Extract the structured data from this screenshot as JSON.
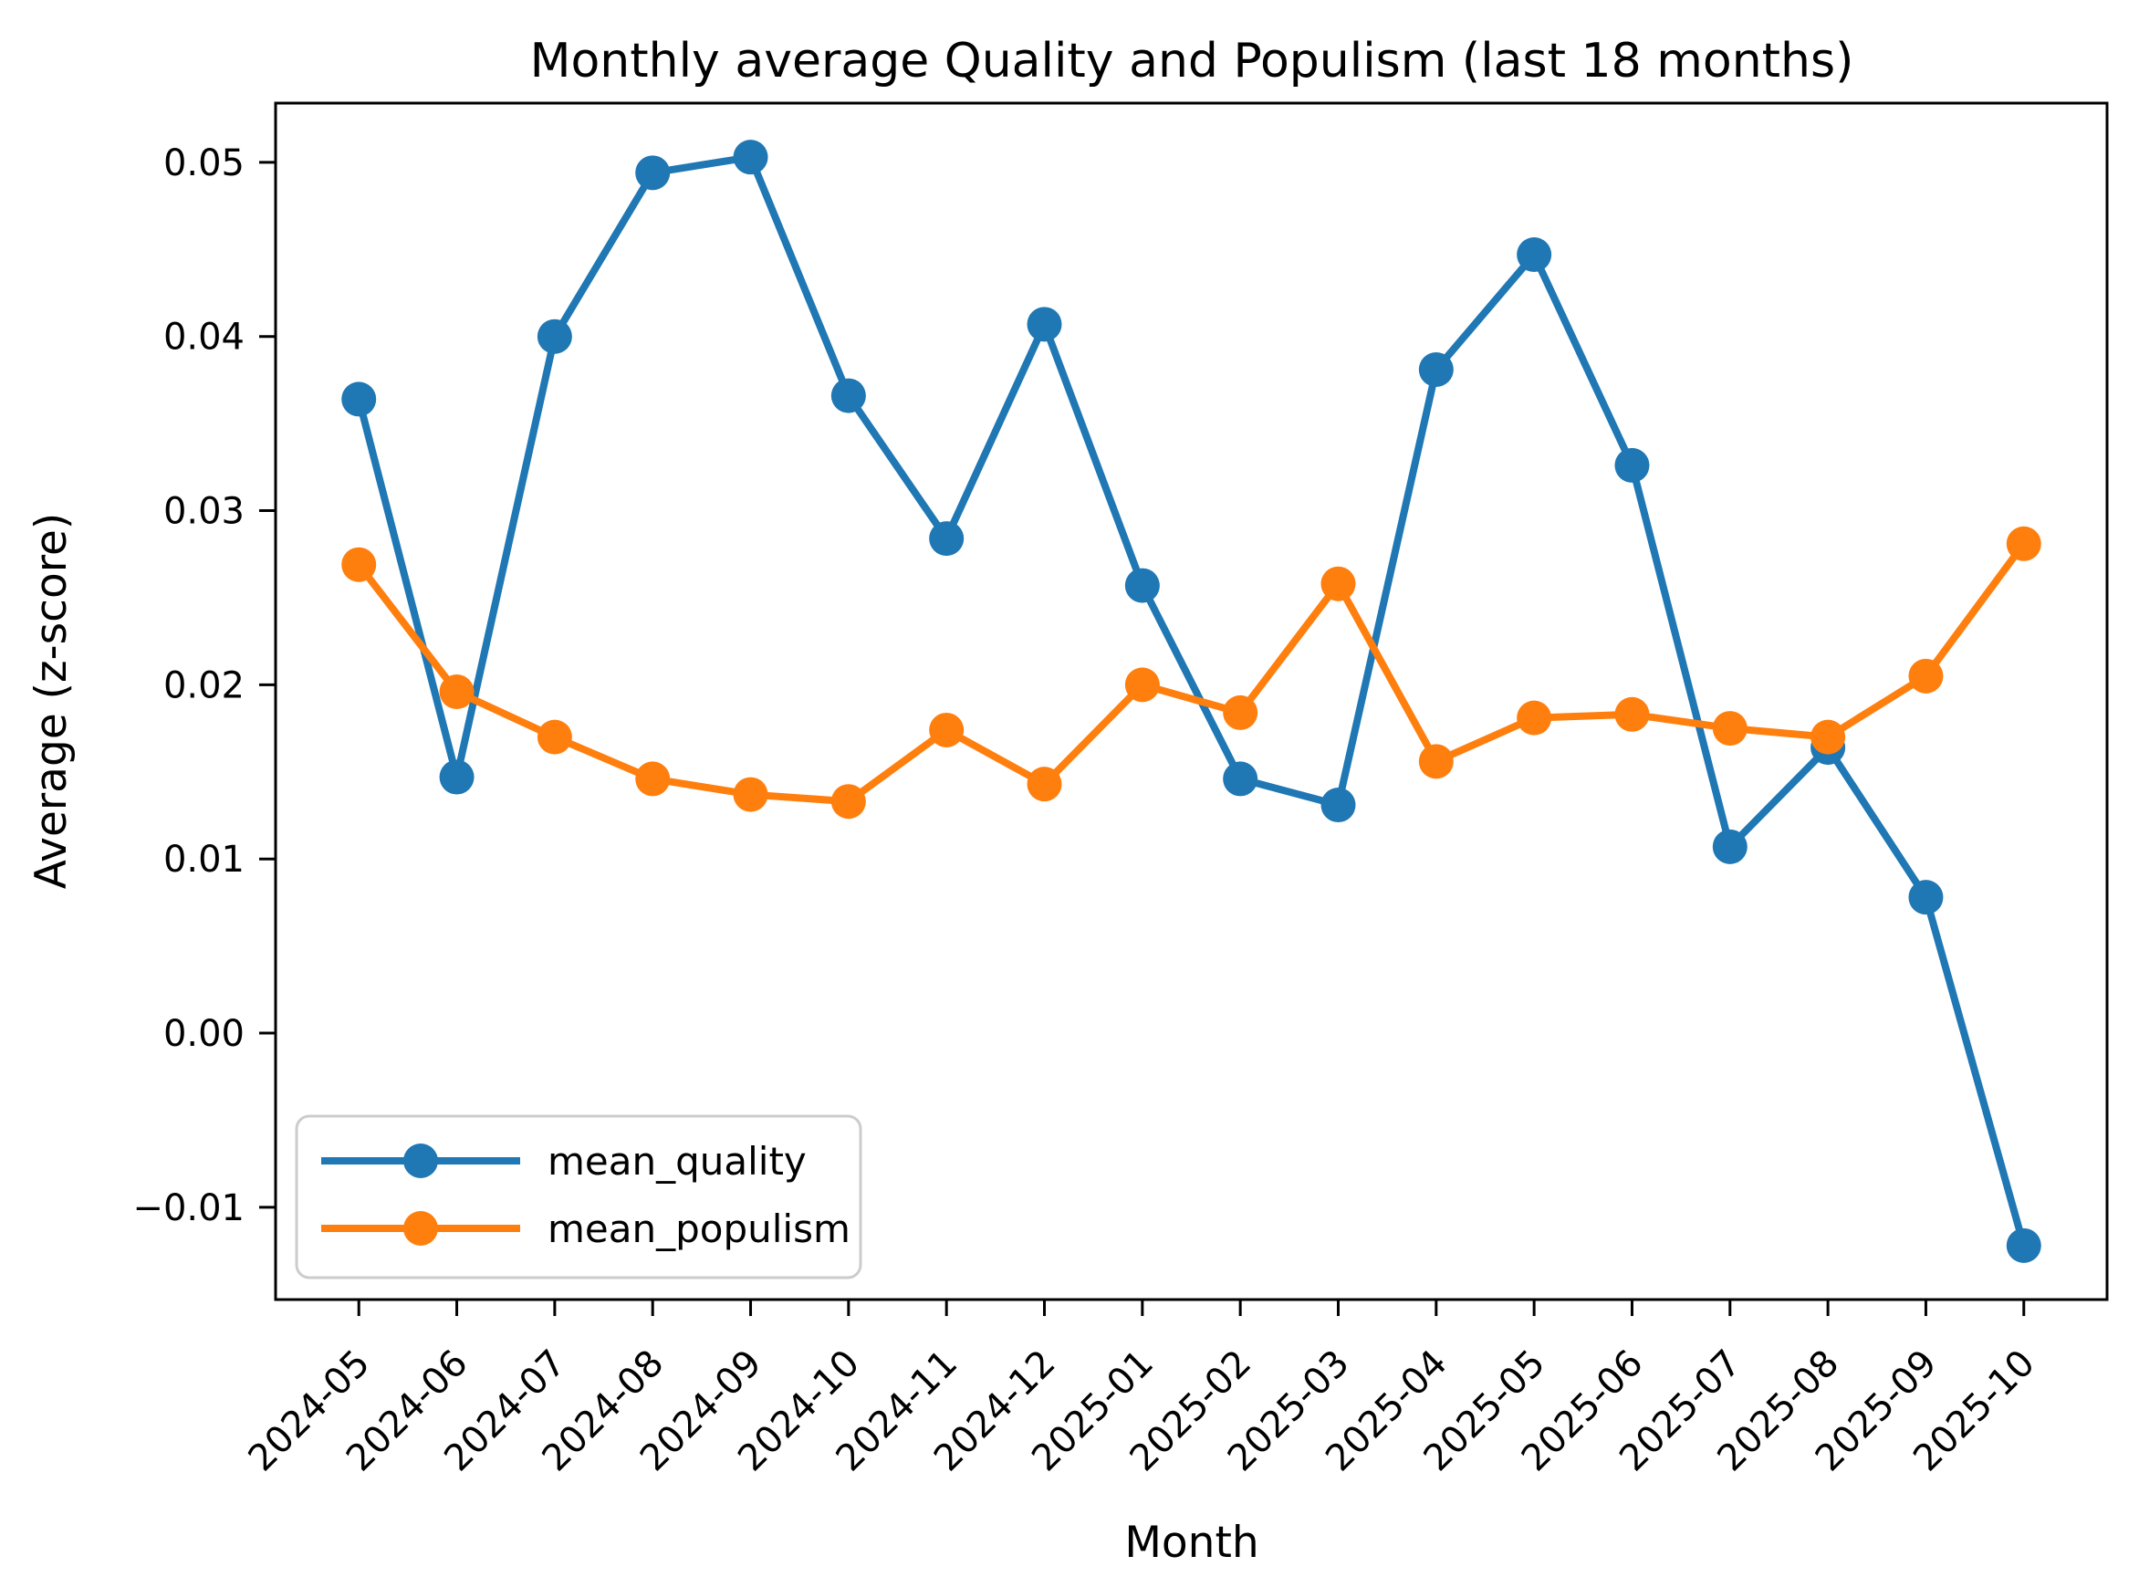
{
  "figure": {
    "title": "Monthly average Quality and Populism (last 18 months)",
    "xlabel": "Month",
    "ylabel": "Average (z-score)"
  },
  "chart_data": {
    "type": "line",
    "title": "Monthly average Quality and Populism (last 18 months)",
    "xlabel": "Month",
    "ylabel": "Average (z-score)",
    "categories": [
      "2024-05",
      "2024-06",
      "2024-07",
      "2024-08",
      "2024-09",
      "2024-10",
      "2024-11",
      "2024-12",
      "2025-01",
      "2025-02",
      "2025-03",
      "2025-04",
      "2025-05",
      "2025-06",
      "2025-07",
      "2025-08",
      "2025-09",
      "2025-10"
    ],
    "series": [
      {
        "name": "mean_quality",
        "color": "#1f77b4",
        "values": [
          0.0364,
          0.0147,
          0.04,
          0.0494,
          0.0503,
          0.0366,
          0.0284,
          0.0407,
          0.0257,
          0.0146,
          0.0131,
          0.0381,
          0.0447,
          0.0326,
          0.0107,
          0.0164,
          0.0078,
          -0.0122
        ]
      },
      {
        "name": "mean_populism",
        "color": "#ff7f0e",
        "values": [
          0.0269,
          0.0196,
          0.017,
          0.0146,
          0.0137,
          0.0133,
          0.0174,
          0.0143,
          0.02,
          0.0184,
          0.0258,
          0.0156,
          0.0181,
          0.0183,
          0.0175,
          0.017,
          0.0205,
          0.0281
        ]
      }
    ],
    "yticks": [
      0.05,
      0.04,
      0.03,
      0.02,
      0.01,
      0.0,
      -0.01
    ],
    "ytick_labels": [
      "0.05",
      "0.04",
      "0.03",
      "0.02",
      "0.01",
      "0.00",
      "−0.01"
    ],
    "ylim": [
      -0.0153,
      0.0534
    ],
    "grid": false,
    "legend_position": "lower left",
    "background": "#ffffff",
    "text_color": "#000000",
    "spine_color": "#000000",
    "legend_border_color": "#cccccc"
  }
}
